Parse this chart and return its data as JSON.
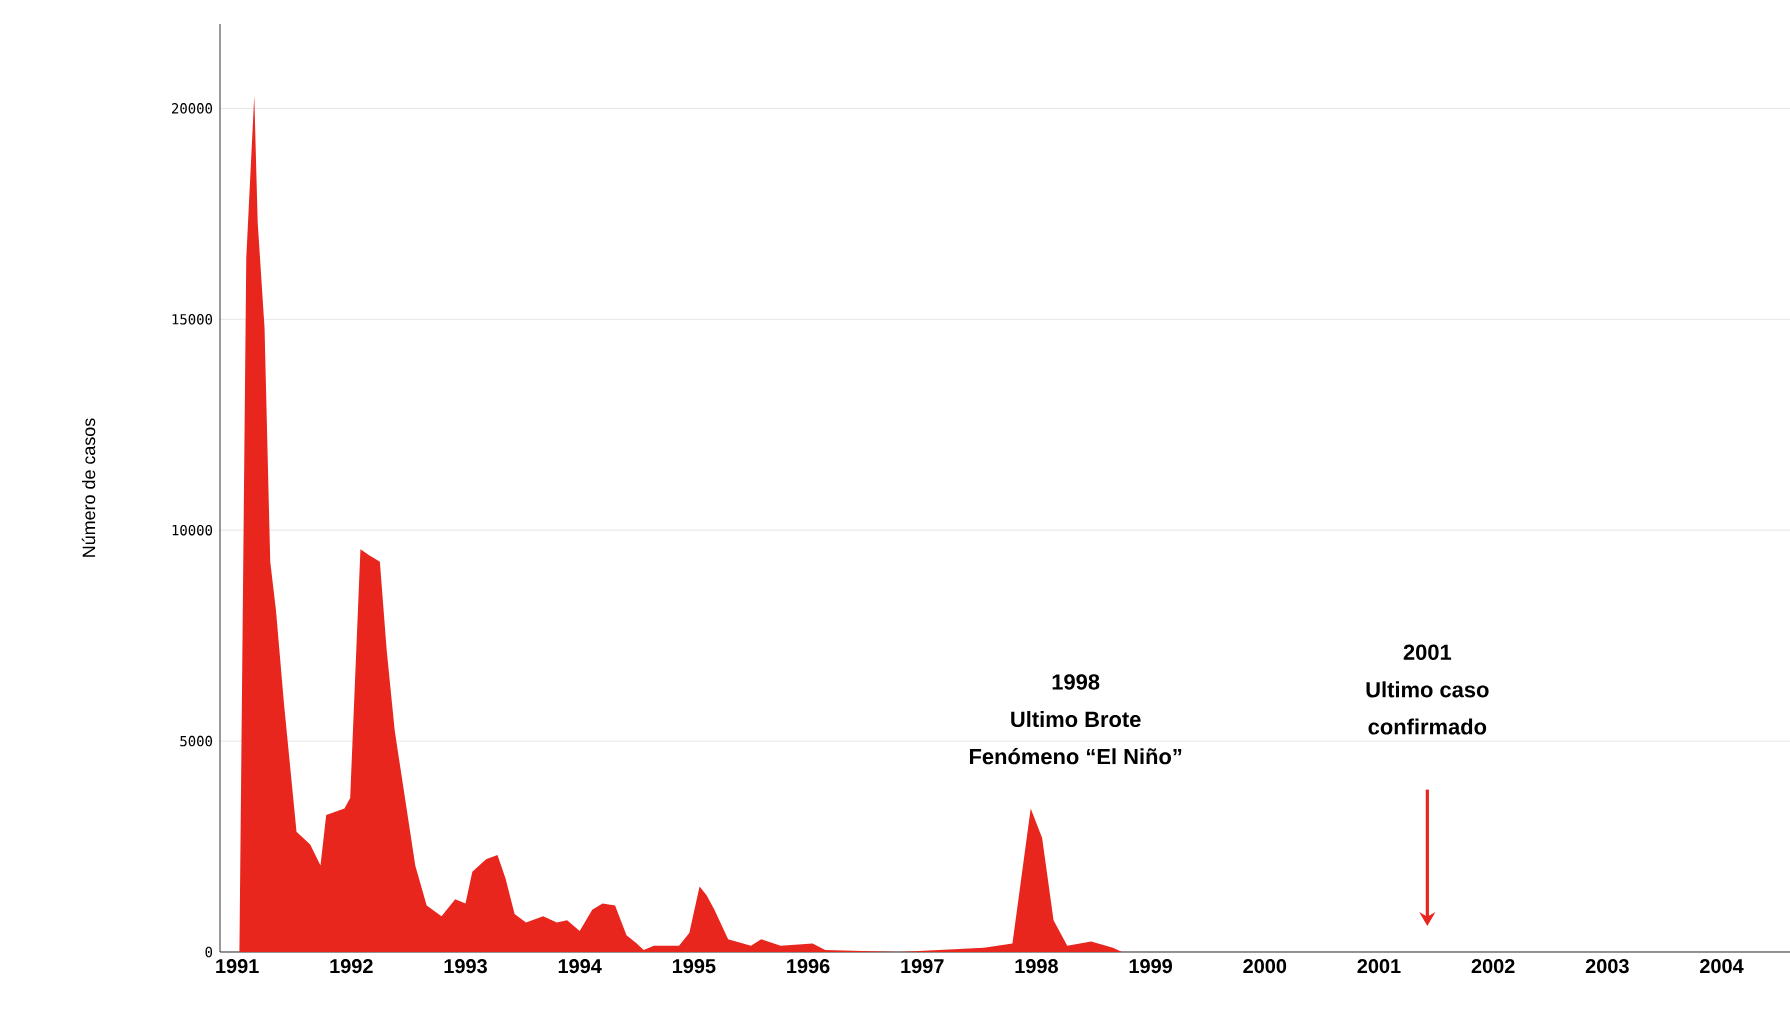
{
  "chart_data": {
    "type": "area",
    "ylabel": "Número de casos",
    "color": "#e8261e",
    "x": [
      1991.02,
      1991.08,
      1991.15,
      1991.18,
      1991.24,
      1991.29,
      1991.34,
      1991.41,
      1991.52,
      1991.64,
      1991.73,
      1991.78,
      1991.94,
      1991.99,
      1992.08,
      1992.16,
      1992.25,
      1992.31,
      1992.38,
      1992.47,
      1992.56,
      1992.66,
      1992.79,
      1992.91,
      1993.0,
      1993.06,
      1993.18,
      1993.28,
      1993.35,
      1993.43,
      1993.53,
      1993.68,
      1993.8,
      1993.89,
      1994.0,
      1994.11,
      1994.2,
      1994.31,
      1994.41,
      1994.5,
      1994.56,
      1994.65,
      1994.87,
      1994.96,
      1995.05,
      1995.11,
      1995.18,
      1995.3,
      1995.5,
      1995.59,
      1995.76,
      1996.04,
      1996.15,
      1996.8,
      1997.54,
      1997.79,
      1997.95,
      1998.05,
      1998.15,
      1998.27,
      1998.48,
      1998.67,
      1998.75,
      2004.5
    ],
    "values": [
      0,
      16450,
      20300,
      17300,
      14800,
      9250,
      8100,
      5900,
      2850,
      2550,
      2050,
      3250,
      3400,
      3650,
      9550,
      9400,
      9250,
      7150,
      5250,
      3650,
      2050,
      1100,
      850,
      1250,
      1150,
      1900,
      2200,
      2300,
      1750,
      900,
      700,
      850,
      700,
      750,
      500,
      1000,
      1150,
      1100,
      400,
      200,
      50,
      150,
      150,
      450,
      1550,
      1350,
      1000,
      300,
      150,
      300,
      150,
      200,
      50,
      0,
      100,
      200,
      3400,
      2700,
      750,
      150,
      250,
      100,
      0,
      0
    ],
    "xlim": [
      1990.85,
      2004.6
    ],
    "xticks": [
      1991,
      1992,
      1993,
      1994,
      1995,
      1996,
      1997,
      1998,
      1999,
      2000,
      2001,
      2002,
      2003,
      2004
    ],
    "ylim": [
      0,
      22000
    ],
    "yticks": [
      0,
      5000,
      10000,
      15000,
      20000
    ],
    "grid": "y",
    "annotations": [
      "1998",
      "Ultimo Brote",
      "Fenómeno “El Niño”",
      "2001",
      "Ultimo caso",
      "confirmado"
    ]
  }
}
